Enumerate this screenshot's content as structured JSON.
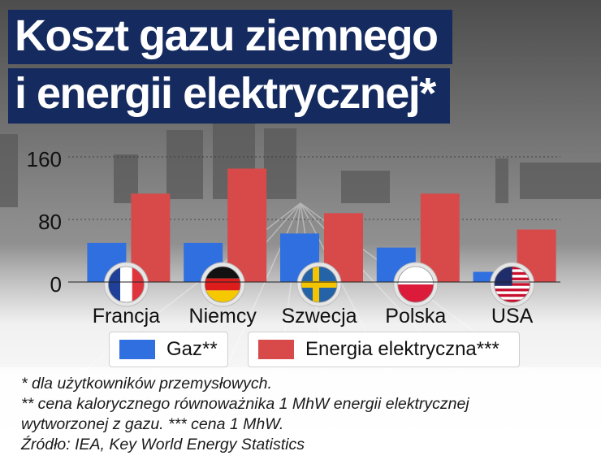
{
  "title": {
    "line1": "Koszt gazu ziemnego",
    "line2": "i energii elektrycznej*"
  },
  "colors": {
    "title_background": "#152a5e",
    "gas": "#2f6fe0",
    "electricity": "#d84a4a"
  },
  "chart_data": {
    "type": "bar",
    "categories": [
      "Francja",
      "Niemcy",
      "Szwecja",
      "Polska",
      "USA"
    ],
    "category_icons": [
      "flag-france-icon",
      "flag-germany-icon",
      "flag-sweden-icon",
      "flag-poland-icon",
      "flag-usa-icon"
    ],
    "series": [
      {
        "name": "Gaz**",
        "values": [
          50,
          50,
          62,
          44,
          13
        ]
      },
      {
        "name": "Energia elektryczna***",
        "values": [
          113,
          145,
          88,
          113,
          67
        ]
      }
    ],
    "ylim": [
      0,
      160
    ],
    "yticks": [
      0,
      80,
      160
    ],
    "grid": true,
    "legend_position": "bottom"
  },
  "notes": [
    "* dla użytkowników przemysłowych.",
    "** cena kalorycznego równoważnika 1 MhW energii elektrycznej",
    "wytworzonej z gazu. *** cena 1 MhW.",
    "Źródło: IEA, Key World Energy Statistics"
  ]
}
